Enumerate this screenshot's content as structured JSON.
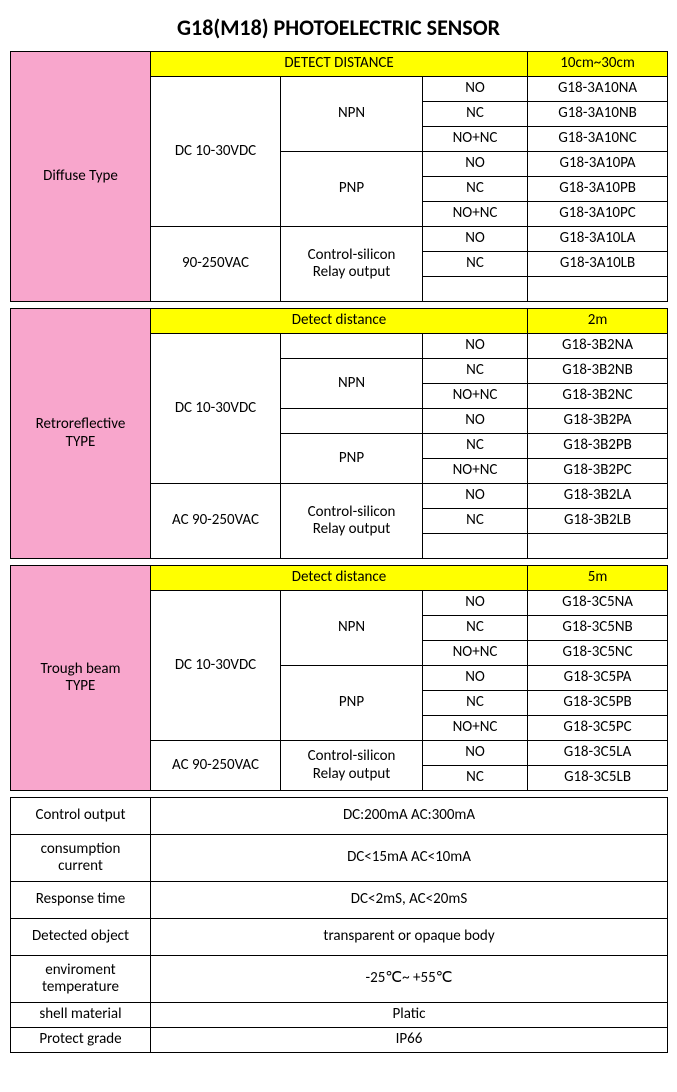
{
  "title": "G18(M18) PHOTOELECTRIC SENSOR",
  "sections": [
    {
      "type_label": "Diffuse Type",
      "detect_header": "DETECT DISTANCE",
      "distance": "10cm~30cm",
      "groups": [
        {
          "voltage": "DC  10-30VDC",
          "outputs": [
            {
              "name": "NPN",
              "rows": [
                {
                  "mode": "NO",
                  "model": "G18-3A10NA"
                },
                {
                  "mode": "NC",
                  "model": "G18-3A10NB"
                },
                {
                  "mode": "NO+NC",
                  "model": "G18-3A10NC"
                }
              ]
            },
            {
              "name": "PNP",
              "rows": [
                {
                  "mode": "NO",
                  "model": "G18-3A10PA"
                },
                {
                  "mode": "NC",
                  "model": "G18-3A10PB"
                },
                {
                  "mode": "NO+NC",
                  "model": "G18-3A10PC"
                }
              ]
            }
          ]
        },
        {
          "voltage": "90-250VAC",
          "outputs": [
            {
              "name": "Control-silicon\nRelay output",
              "rows": [
                {
                  "mode": "NO",
                  "model": "G18-3A10LA"
                },
                {
                  "mode": "NC",
                  "model": "G18-3A10LB"
                },
                {
                  "mode": "",
                  "model": ""
                }
              ]
            }
          ]
        }
      ]
    },
    {
      "type_label": "Retroreflective\nTYPE",
      "detect_header": "Detect distance",
      "distance": "2m",
      "groups": [
        {
          "voltage": "DC 10-30VDC",
          "outputs": [
            {
              "name": "",
              "rows": [
                {
                  "mode": "NO",
                  "model": "G18-3B2NA"
                }
              ]
            },
            {
              "name": "NPN",
              "rows": [
                {
                  "mode": "NC",
                  "model": "G18-3B2NB"
                },
                {
                  "mode": "NO+NC",
                  "model": "G18-3B2NC"
                }
              ]
            },
            {
              "name": "",
              "rows": [
                {
                  "mode": "NO",
                  "model": "G18-3B2PA"
                }
              ]
            },
            {
              "name": "PNP",
              "rows": [
                {
                  "mode": "NC",
                  "model": "G18-3B2PB"
                },
                {
                  "mode": "NO+NC",
                  "model": "G18-3B2PC"
                }
              ]
            }
          ]
        },
        {
          "voltage": "AC 90-250VAC",
          "outputs": [
            {
              "name": "Control-silicon\nRelay output",
              "rows": [
                {
                  "mode": "NO",
                  "model": "G18-3B2LA"
                },
                {
                  "mode": "NC",
                  "model": "G18-3B2LB"
                },
                {
                  "mode": "",
                  "model": ""
                }
              ]
            }
          ]
        }
      ]
    },
    {
      "type_label": "Trough beam\nTYPE",
      "detect_header": "Detect distance",
      "distance": "5m",
      "groups": [
        {
          "voltage": "DC 10-30VDC",
          "outputs": [
            {
              "name": "NPN",
              "rows": [
                {
                  "mode": "NO",
                  "model": "G18-3C5NA"
                },
                {
                  "mode": "NC",
                  "model": "G18-3C5NB"
                },
                {
                  "mode": "NO+NC",
                  "model": "G18-3C5NC"
                }
              ]
            },
            {
              "name": "PNP",
              "rows": [
                {
                  "mode": "NO",
                  "model": "G18-3C5PA"
                },
                {
                  "mode": "NC",
                  "model": "G18-3C5PB"
                },
                {
                  "mode": "NO+NC",
                  "model": "G18-3C5PC"
                }
              ]
            }
          ]
        },
        {
          "voltage": "AC 90-250VAC",
          "outputs": [
            {
              "name": "Control-silicon\nRelay output",
              "rows": [
                {
                  "mode": "NO",
                  "model": "G18-3C5LA"
                },
                {
                  "mode": "NC",
                  "model": "G18-3C5LB"
                }
              ]
            }
          ]
        }
      ]
    }
  ],
  "footer_rows": [
    {
      "label": "Control output",
      "value": "DC:200mA AC:300mA",
      "tall": false
    },
    {
      "label": "consumption\ncurrent",
      "value": "DC<15mA AC<10mA",
      "tall": true
    },
    {
      "label": "Response time",
      "value": "DC<2mS, AC<20mS",
      "tall": false
    },
    {
      "label": "Detected object",
      "value": "transparent or opaque body",
      "tall": false
    },
    {
      "label": "enviroment\ntemperature",
      "value": "-25℃~ +55℃",
      "tall": true
    },
    {
      "label": "shell material",
      "value": "Platic",
      "tall": false
    },
    {
      "label": "Protect grade",
      "value": "IP66",
      "tall": false
    }
  ],
  "colors": {
    "pink": "#f8a6cc",
    "yellow": "#ffff00",
    "border": "#000000"
  }
}
